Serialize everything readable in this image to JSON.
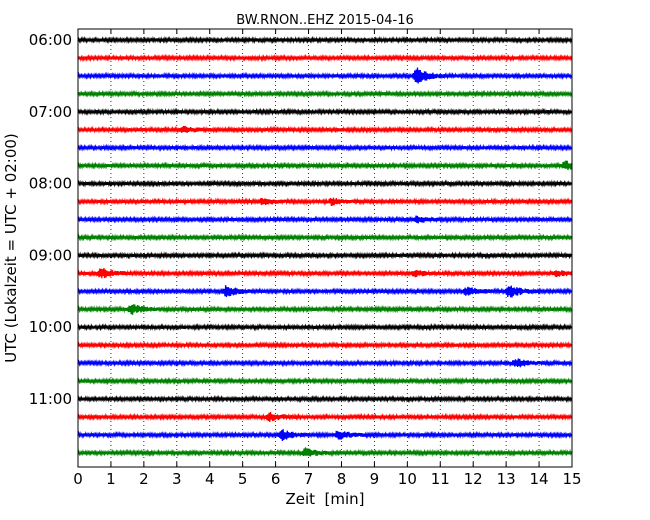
{
  "chart_data": {
    "type": "line",
    "subtype": "seismic-helicorder",
    "title": "BW.RNON..EHZ 2015-04-16",
    "xlabel": "Zeit  [min]",
    "ylabel": "UTC (Lokalzeit = UTC + 02:00)",
    "xlim": [
      0,
      15
    ],
    "x_ticks": [
      0,
      1,
      2,
      3,
      4,
      5,
      6,
      7,
      8,
      9,
      10,
      11,
      12,
      13,
      14,
      15
    ],
    "y_ticks": [
      "06:00",
      "07:00",
      "08:00",
      "09:00",
      "10:00",
      "11:00"
    ],
    "trace_interval_min": 15,
    "grid": "vertical dotted at each minute",
    "trace_colors": [
      "#000000",
      "#ff0000",
      "#0000ff",
      "#008000"
    ],
    "traces": [
      {
        "start": "06:00",
        "color": "#000000",
        "events": []
      },
      {
        "start": "06:15",
        "color": "#ff0000",
        "events": []
      },
      {
        "start": "06:30",
        "color": "#0000ff",
        "events": [
          {
            "t": 10.3,
            "amp": 8
          }
        ]
      },
      {
        "start": "06:45",
        "color": "#008000",
        "events": []
      },
      {
        "start": "07:00",
        "color": "#000000",
        "events": []
      },
      {
        "start": "07:15",
        "color": "#ff0000",
        "events": [
          {
            "t": 3.2,
            "amp": 3
          }
        ]
      },
      {
        "start": "07:30",
        "color": "#0000ff",
        "events": []
      },
      {
        "start": "07:45",
        "color": "#008000",
        "events": [
          {
            "t": 14.8,
            "amp": 4
          }
        ]
      },
      {
        "start": "08:00",
        "color": "#000000",
        "events": []
      },
      {
        "start": "08:15",
        "color": "#ff0000",
        "events": [
          {
            "t": 5.6,
            "amp": 3
          },
          {
            "t": 7.7,
            "amp": 3
          }
        ]
      },
      {
        "start": "08:30",
        "color": "#0000ff",
        "events": [
          {
            "t": 10.3,
            "amp": 3
          }
        ]
      },
      {
        "start": "08:45",
        "color": "#008000",
        "events": []
      },
      {
        "start": "09:00",
        "color": "#000000",
        "events": []
      },
      {
        "start": "09:15",
        "color": "#ff0000",
        "events": [
          {
            "t": 0.7,
            "amp": 5
          },
          {
            "t": 10.2,
            "amp": 3
          },
          {
            "t": 14.5,
            "amp": 3
          }
        ]
      },
      {
        "start": "09:30",
        "color": "#0000ff",
        "events": [
          {
            "t": 4.5,
            "amp": 5
          },
          {
            "t": 11.8,
            "amp": 4
          },
          {
            "t": 13.1,
            "amp": 6
          }
        ]
      },
      {
        "start": "09:45",
        "color": "#008000",
        "events": [
          {
            "t": 1.6,
            "amp": 5
          }
        ]
      },
      {
        "start": "10:00",
        "color": "#000000",
        "events": []
      },
      {
        "start": "10:15",
        "color": "#ff0000",
        "events": []
      },
      {
        "start": "10:30",
        "color": "#0000ff",
        "events": [
          {
            "t": 13.3,
            "amp": 4
          }
        ]
      },
      {
        "start": "10:45",
        "color": "#008000",
        "events": []
      },
      {
        "start": "11:00",
        "color": "#000000",
        "events": []
      },
      {
        "start": "11:15",
        "color": "#ff0000",
        "events": [
          {
            "t": 5.8,
            "amp": 4
          }
        ]
      },
      {
        "start": "11:30",
        "color": "#0000ff",
        "events": [
          {
            "t": 6.2,
            "amp": 5
          },
          {
            "t": 7.9,
            "amp": 4
          }
        ]
      },
      {
        "start": "11:45",
        "color": "#008000",
        "events": [
          {
            "t": 6.9,
            "amp": 4
          }
        ]
      }
    ]
  }
}
